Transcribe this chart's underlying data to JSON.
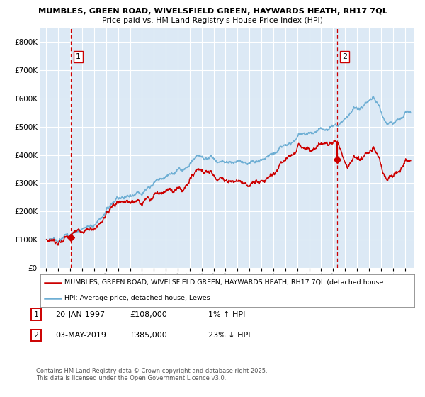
{
  "title1": "MUMBLES, GREEN ROAD, WIVELSFIELD GREEN, HAYWARDS HEATH, RH17 7QL",
  "title2": "Price paid vs. HM Land Registry's House Price Index (HPI)",
  "bg_color": "#dce9f5",
  "grid_color": "#ffffff",
  "hpi_color": "#6fafd4",
  "price_color": "#cc0000",
  "vline_color": "#cc0000",
  "marker1_date": 1997.055,
  "marker1_price": 108000,
  "marker2_date": 2019.336,
  "marker2_price": 385000,
  "legend_price_label": "MUMBLES, GREEN ROAD, WIVELSFIELD GREEN, HAYWARDS HEATH, RH17 7QL (detached house",
  "legend_hpi_label": "HPI: Average price, detached house, Lewes",
  "footer1": "Contains HM Land Registry data © Crown copyright and database right 2025.",
  "footer2": "This data is licensed under the Open Government Licence v3.0.",
  "ylim_max": 850000,
  "yticks": [
    0,
    100000,
    200000,
    300000,
    400000,
    500000,
    600000,
    700000,
    800000
  ],
  "xlim_min": 1994.5,
  "xlim_max": 2025.8
}
